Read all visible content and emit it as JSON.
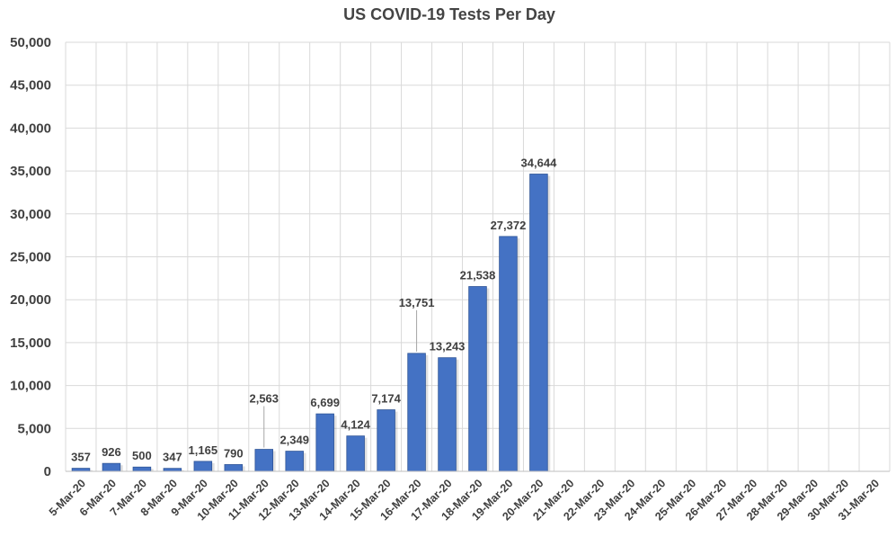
{
  "chart_data": {
    "type": "bar",
    "title": "US COVID-19 Tests Per Day",
    "xlabel": "",
    "ylabel": "",
    "ylim": [
      0,
      50000
    ],
    "yticks": [
      "0",
      "5,000",
      "10,000",
      "15,000",
      "20,000",
      "25,000",
      "30,000",
      "35,000",
      "40,000",
      "45,000",
      "50,000"
    ],
    "grid": true,
    "legend": "none",
    "bar_color": "#4472C4",
    "categories": [
      "5-Mar-20",
      "6-Mar-20",
      "7-Mar-20",
      "8-Mar-20",
      "9-Mar-20",
      "10-Mar-20",
      "11-Mar-20",
      "12-Mar-20",
      "13-Mar-20",
      "14-Mar-20",
      "15-Mar-20",
      "16-Mar-20",
      "17-Mar-20",
      "18-Mar-20",
      "19-Mar-20",
      "20-Mar-20",
      "21-Mar-20",
      "22-Mar-20",
      "23-Mar-20",
      "24-Mar-20",
      "25-Mar-20",
      "26-Mar-20",
      "27-Mar-20",
      "28-Mar-20",
      "29-Mar-20",
      "30-Mar-20",
      "31-Mar-20"
    ],
    "values": [
      357,
      926,
      500,
      347,
      1165,
      790,
      2563,
      2349,
      6699,
      4124,
      7174,
      13751,
      13243,
      21538,
      27372,
      34644,
      null,
      null,
      null,
      null,
      null,
      null,
      null,
      null,
      null,
      null,
      null
    ],
    "data_labels": [
      "357",
      "926",
      "500",
      "347",
      "1,165",
      "790",
      "2,563",
      "2,349",
      "6,699",
      "4,124",
      "7,174",
      "13,751",
      "13,243",
      "21,538",
      "27,372",
      "34,644",
      "",
      "",
      "",
      "",
      "",
      "",
      "",
      "",
      "",
      "",
      ""
    ]
  }
}
